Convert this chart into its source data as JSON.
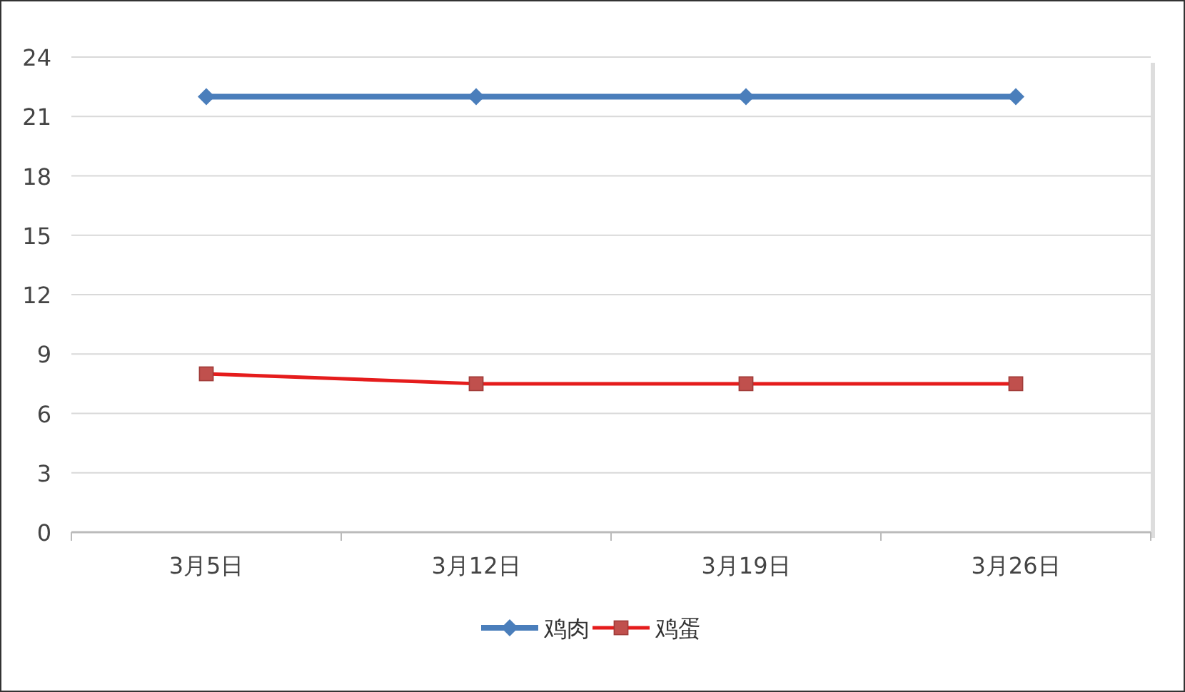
{
  "chart_data": {
    "type": "line",
    "categories": [
      "3月5日",
      "3月12日",
      "3月19日",
      "3月26日"
    ],
    "series": [
      {
        "name": "鸡肉",
        "color": "#4a7ebb",
        "values": [
          22,
          22,
          22,
          22
        ],
        "marker": "diamond"
      },
      {
        "name": "鸡蛋",
        "color": "#e51c1c",
        "values": [
          8,
          7.5,
          7.5,
          7.5
        ],
        "marker": "square"
      }
    ],
    "ylim": [
      0,
      24
    ],
    "yticks": [
      0,
      3,
      6,
      9,
      12,
      15,
      18,
      21,
      24
    ],
    "grid": "y",
    "legend": "bottom"
  }
}
